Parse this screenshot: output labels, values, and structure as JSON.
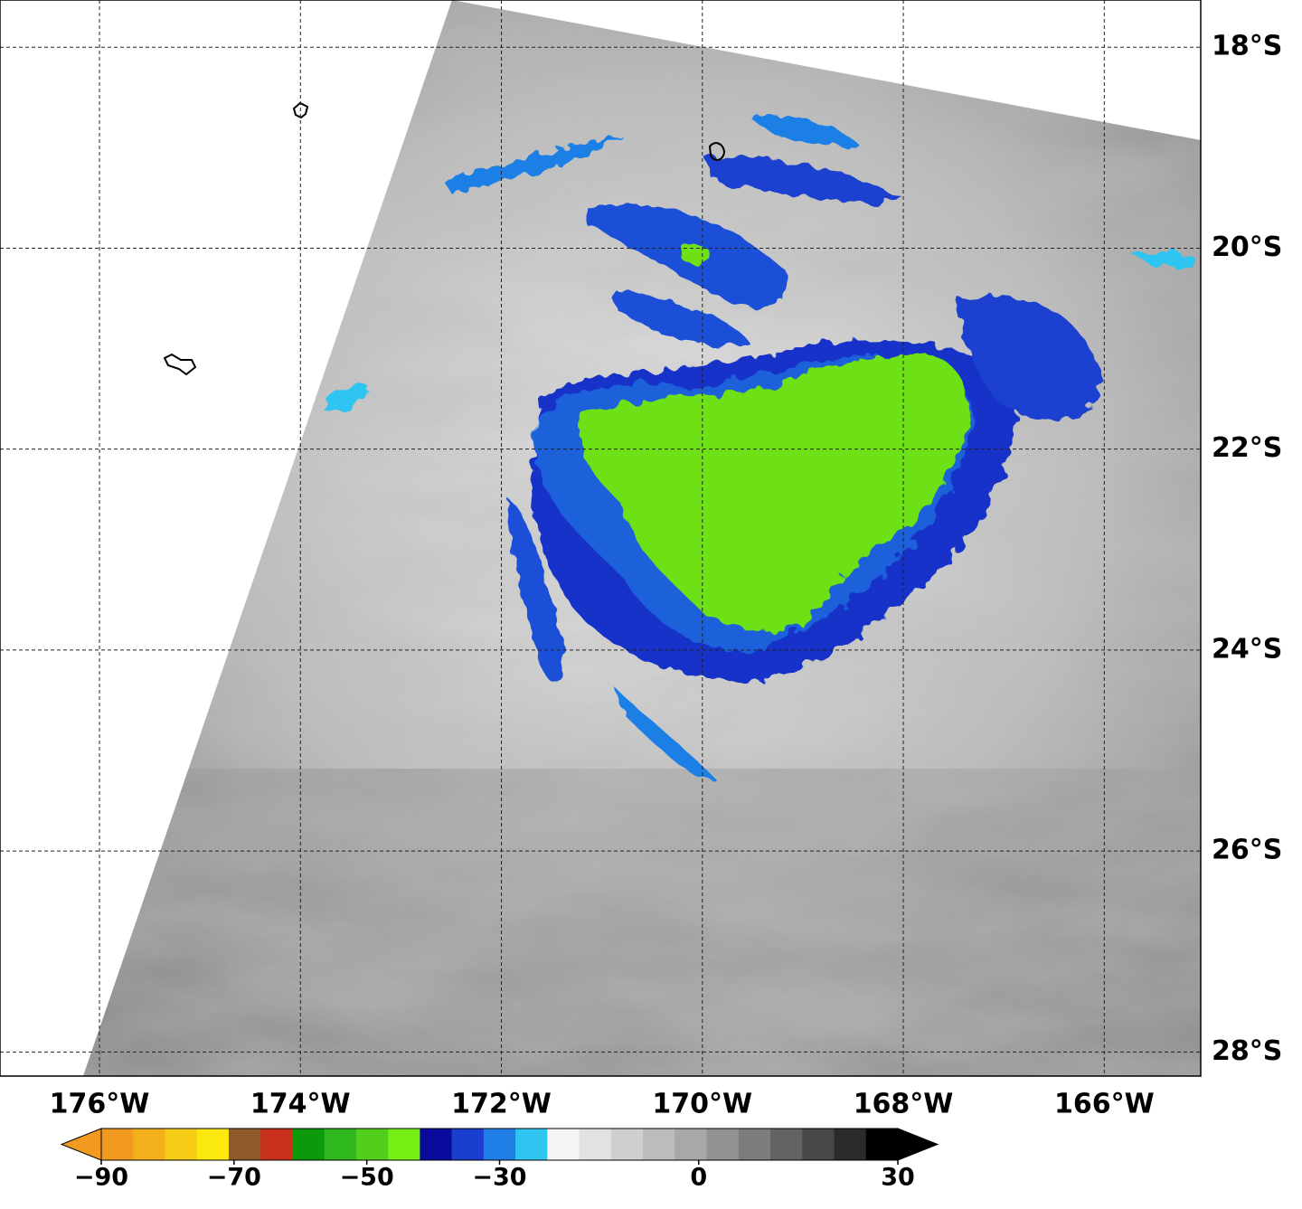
{
  "map": {
    "lonlim": [
      -176.99,
      -165.04
    ],
    "latlim": [
      -17.53,
      -28.24
    ],
    "lon_ticks": [
      {
        "value": -176,
        "label": "176°W"
      },
      {
        "value": -174,
        "label": "174°W"
      },
      {
        "value": -172,
        "label": "172°W"
      },
      {
        "value": -170,
        "label": "170°W"
      },
      {
        "value": -168,
        "label": "168°W"
      },
      {
        "value": -166,
        "label": "166°W"
      }
    ],
    "lat_ticks": [
      {
        "value": -18,
        "label": "18°S"
      },
      {
        "value": -20,
        "label": "20°S"
      },
      {
        "value": -22,
        "label": "22°S"
      },
      {
        "value": -24,
        "label": "24°S"
      },
      {
        "value": -26,
        "label": "26°S"
      },
      {
        "value": -28,
        "label": "28°S"
      }
    ],
    "grid": true
  },
  "colorbar": {
    "lim": [
      -90,
      30
    ],
    "ticks": [
      {
        "value": -90,
        "label": "−90"
      },
      {
        "value": -70,
        "label": "−70"
      },
      {
        "value": -50,
        "label": "−50"
      },
      {
        "value": -30,
        "label": "−30"
      },
      0,
      30
    ],
    "colors": [
      "#f29a1f",
      "#f4b01c",
      "#f7cc16",
      "#fbe80f",
      "#8e5a2c",
      "#c8301c",
      "#0c9a0c",
      "#2fb71e",
      "#52cf1c",
      "#76ee14",
      "#0a0a9c",
      "#1a3fcf",
      "#1f7fe6",
      "#2ec6f0",
      "#f4f4f4",
      "#e2e2e2",
      "#cfcfcf",
      "#bcbcbc",
      "#a8a8a8",
      "#939393",
      "#7c7c7c",
      "#636363",
      "#474747",
      "#2a2a2a",
      "#000000"
    ]
  }
}
